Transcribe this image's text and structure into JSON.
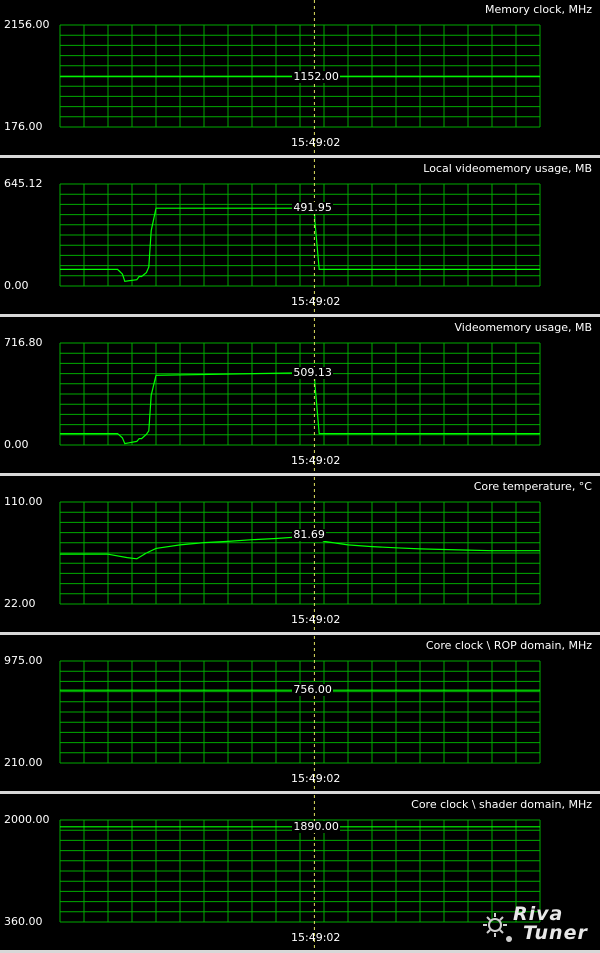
{
  "app": {
    "watermark_line1": "Riva",
    "watermark_line2": "Tuner"
  },
  "colors": {
    "background": "#000000",
    "grid": "#00aa00",
    "trace": "#00ff00",
    "cursor": "#e0e060",
    "text": "#ffffff",
    "separator": "#d8d8d8"
  },
  "graphs": [
    {
      "title": "Memory clock, MHz",
      "ymax_label": "2156.00",
      "ymin_label": "176.00",
      "time_label": "15:49:02",
      "cursor_value": "1152.00"
    },
    {
      "title": "Local videomemory usage, MB",
      "ymax_label": "645.12",
      "ymin_label": "0.00",
      "time_label": "15:49:02",
      "cursor_value": "491.95"
    },
    {
      "title": "Videomemory usage, MB",
      "ymax_label": "716.80",
      "ymin_label": "0.00",
      "time_label": "15:49:02",
      "cursor_value": "509.13"
    },
    {
      "title": "Core temperature, °C",
      "ymax_label": "110.00",
      "ymin_label": "22.00",
      "time_label": "15:49:02",
      "cursor_value": "81.69"
    },
    {
      "title": "Core clock \\ ROP domain, MHz",
      "ymax_label": "975.00",
      "ymin_label": "210.00",
      "time_label": "15:49:02",
      "cursor_value": "756.00"
    },
    {
      "title": "Core clock \\ shader domain, MHz",
      "ymax_label": "2000.00",
      "ymin_label": "360.00",
      "time_label": "15:49:02",
      "cursor_value": "1890.00"
    }
  ],
  "chart_data": [
    {
      "type": "line",
      "title": "Memory clock, MHz",
      "ylim": [
        176,
        2156
      ],
      "grid": true,
      "cursor_x": 0.53,
      "x": [
        0.0,
        1.0
      ],
      "series": [
        {
          "values": [
            1152,
            1152
          ]
        }
      ]
    },
    {
      "type": "line",
      "title": "Local videomemory usage, MB",
      "ylim": [
        0,
        645.12
      ],
      "grid": true,
      "cursor_x": 0.53,
      "x": [
        0.0,
        0.12,
        0.13,
        0.135,
        0.16,
        0.165,
        0.17,
        0.18,
        0.185,
        0.19,
        0.2,
        0.53,
        0.531,
        0.54,
        1.0
      ],
      "series": [
        {
          "values": [
            105,
            105,
            75,
            30,
            40,
            60,
            60,
            85,
            120,
            350,
            491.95,
            491.95,
            410,
            105,
            105
          ]
        }
      ]
    },
    {
      "type": "line",
      "title": "Videomemory usage, MB",
      "ylim": [
        0,
        716.8
      ],
      "grid": true,
      "cursor_x": 0.53,
      "x": [
        0.0,
        0.12,
        0.13,
        0.135,
        0.16,
        0.165,
        0.17,
        0.18,
        0.185,
        0.19,
        0.2,
        0.53,
        0.531,
        0.54,
        1.0
      ],
      "series": [
        {
          "values": [
            80,
            80,
            50,
            10,
            25,
            45,
            45,
            75,
            100,
            350,
            490,
            509.13,
            430,
            80,
            80
          ]
        }
      ]
    },
    {
      "type": "line",
      "title": "Core temperature, °C",
      "ylim": [
        22,
        110
      ],
      "grid": true,
      "cursor_x": 0.53,
      "x": [
        0.0,
        0.1,
        0.14,
        0.16,
        0.18,
        0.2,
        0.25,
        0.3,
        0.35,
        0.4,
        0.45,
        0.5,
        0.53,
        0.55,
        0.6,
        0.65,
        0.7,
        0.75,
        0.8,
        0.85,
        0.9,
        1.0
      ],
      "series": [
        {
          "values": [
            65,
            65,
            62,
            61,
            66,
            70,
            73,
            75,
            76,
            77.5,
            78.5,
            80,
            81.69,
            76,
            73,
            71.5,
            70.5,
            69.5,
            69,
            68.5,
            68,
            68
          ]
        }
      ]
    },
    {
      "type": "line",
      "title": "Core clock \\ ROP domain, MHz",
      "ylim": [
        210,
        975
      ],
      "grid": true,
      "cursor_x": 0.53,
      "x": [
        0.0,
        1.0
      ],
      "series": [
        {
          "values": [
            756,
            756
          ]
        }
      ]
    },
    {
      "type": "line",
      "title": "Core clock \\ shader domain, MHz",
      "ylim": [
        360,
        2000
      ],
      "grid": true,
      "cursor_x": 0.53,
      "x": [
        0.0,
        1.0
      ],
      "series": [
        {
          "values": [
            1890,
            1890
          ]
        }
      ]
    }
  ]
}
